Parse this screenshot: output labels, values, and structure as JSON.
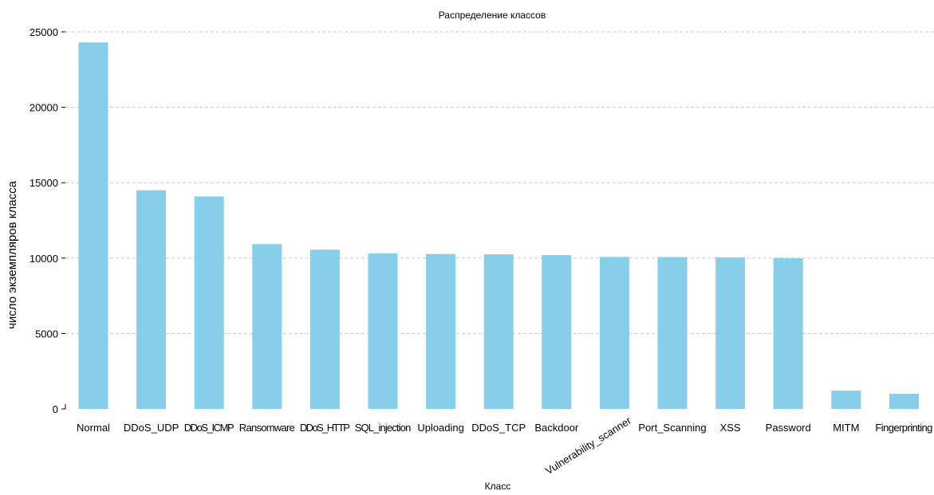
{
  "chart_data": {
    "type": "bar",
    "title": "Распределение классов",
    "xlabel": "Класс",
    "ylabel": "число экземпляров класса",
    "categories": [
      "Normal",
      "DDoS_UDP",
      "DDoS_ICMP",
      "Ransomware",
      "DDoS_HTTP",
      "SQL_injection",
      "Uploading",
      "DDoS_TCP",
      "Backdoor",
      "Vulnerability_scanner",
      "Port_Scanning",
      "XSS",
      "Password",
      "MITM",
      "Fingerprinting"
    ],
    "values": [
      24300,
      14500,
      14090,
      10925,
      10560,
      10310,
      10270,
      10250,
      10200,
      10080,
      10070,
      10050,
      9990,
      1210,
      1000
    ],
    "ylim": [
      0,
      25000
    ],
    "yticks": [
      0,
      5000,
      10000,
      15000,
      20000,
      25000
    ],
    "grid": "y",
    "legend": "none",
    "colors": {
      "bar": "#87ceeb",
      "grid": "#c8c8c8",
      "axis": "#000000"
    }
  }
}
